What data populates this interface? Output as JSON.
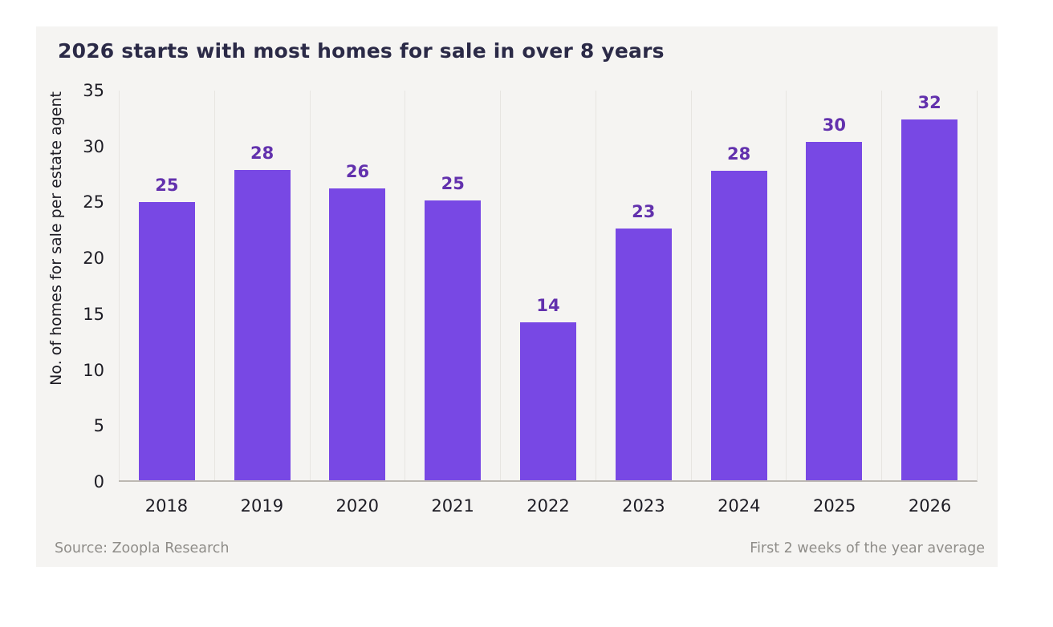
{
  "title": "2026 starts with most homes for sale in over 8 years",
  "footer": {
    "left": "Source: Zoopla Research",
    "right": "First 2 weeks of the year average"
  },
  "chart_data": {
    "type": "bar",
    "title": "2026 starts with most homes for sale in over 8 years",
    "xlabel": "",
    "ylabel": "No. of homes for sale per estate agent",
    "categories": [
      "2018",
      "2019",
      "2020",
      "2021",
      "2022",
      "2023",
      "2024",
      "2025",
      "2026"
    ],
    "values": [
      25,
      28,
      26,
      25,
      14,
      23,
      28,
      30,
      32
    ],
    "bar_heights_estimated": [
      25.0,
      27.9,
      26.2,
      25.1,
      14.2,
      22.6,
      27.8,
      30.4,
      32.4
    ],
    "ylim": [
      0,
      35
    ],
    "yticks": [
      0,
      5,
      10,
      15,
      20,
      25,
      30,
      35
    ],
    "grid": "vertical category boundary lines only",
    "legend_position": "none",
    "colors": {
      "bar": "#7848E4",
      "value_label": "#6231AD",
      "title": "#2B2A47",
      "axis_text": "#1D1C24",
      "grid_line": "#E7E5E1",
      "baseline": "#BCB8B2",
      "footer_text": "#8F8D89",
      "card_background": "#F5F4F2",
      "page_background": "#FFFFFF"
    }
  }
}
